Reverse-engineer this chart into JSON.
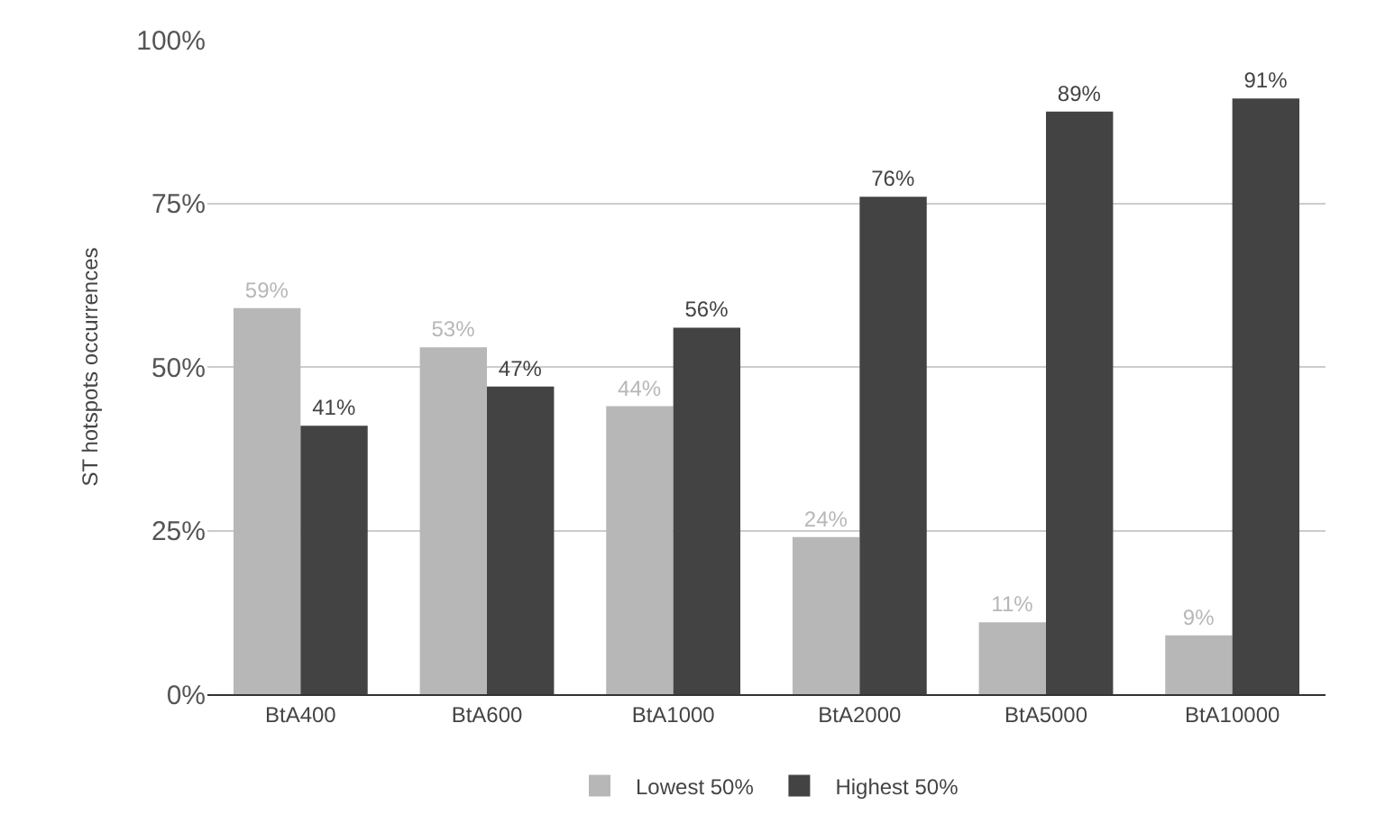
{
  "chart_data": {
    "type": "bar",
    "ylabel": "ST hotspots occurrences",
    "categories": [
      "BtA400",
      "BtA600",
      "BtA1000",
      "BtA2000",
      "BtA5000",
      "BtA10000"
    ],
    "series": [
      {
        "name": "Lowest 50%",
        "color": "#b7b7b7",
        "values": [
          59,
          53,
          44,
          24,
          11,
          9
        ],
        "value_labels": [
          "59%",
          "53%",
          "44%",
          "24%",
          "11%",
          "9%"
        ]
      },
      {
        "name": "Highest 50%",
        "color": "#434343",
        "values": [
          41,
          47,
          56,
          76,
          89,
          91
        ],
        "value_labels": [
          "41%",
          "47%",
          "56%",
          "76%",
          "89%",
          "91%"
        ]
      }
    ],
    "ylim": [
      0,
      100
    ],
    "yticks": [
      {
        "value": 0,
        "label": "0%"
      },
      {
        "value": 25,
        "label": "25%"
      },
      {
        "value": 50,
        "label": "50%"
      },
      {
        "value": 75,
        "label": "75%"
      },
      {
        "value": 100,
        "label": "100%"
      }
    ],
    "grid": "y",
    "legend": "bottom"
  }
}
